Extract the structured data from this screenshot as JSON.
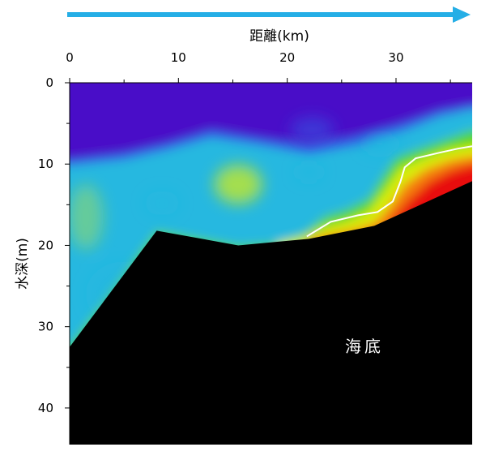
{
  "chart_data": {
    "type": "heatmap",
    "xlabel": "距離(km)",
    "ylabel": "水深(m)",
    "xlim": [
      0,
      37
    ],
    "ylim": [
      0,
      44.5
    ],
    "x_ticks": [
      "0",
      "10",
      "20",
      "30"
    ],
    "x_tick_values": [
      0,
      10,
      20,
      30
    ],
    "y_ticks": [
      "0",
      "10",
      "20",
      "30",
      "40"
    ],
    "y_tick_values": [
      0,
      10,
      20,
      30,
      40
    ],
    "x_minor_step": 5,
    "y_minor_step": 5,
    "x_axis_position": "top",
    "direction_arrow": "left-to-right",
    "seabed_label": "海底",
    "colors": {
      "deep_water": "#4a10c8",
      "blue": "#2f5fe6",
      "cyan": "#25b8e0",
      "green": "#4fd623",
      "yellow": "#d9ee10",
      "orange": "#f57d0f",
      "red": "#e80e08",
      "seabed": "#000000",
      "arrow": "#25aee6",
      "contour": "#ffffff"
    },
    "bottom_profile": [
      {
        "x": 0,
        "depth": 32.5
      },
      {
        "x": 8,
        "depth": 18.2
      },
      {
        "x": 15.5,
        "depth": 20.0
      },
      {
        "x": 22,
        "depth": 19.2
      },
      {
        "x": 28,
        "depth": 17.6
      },
      {
        "x": 37,
        "depth": 12.1
      }
    ],
    "layers": [
      {
        "name": "purple",
        "color": "#4a10c8",
        "boundary": [
          [
            0,
            8.6
          ],
          [
            5,
            7.5
          ],
          [
            9,
            6.5
          ],
          [
            13,
            4.8
          ],
          [
            17,
            5.6
          ],
          [
            22,
            6.2
          ],
          [
            27,
            5.0
          ],
          [
            31,
            3.8
          ],
          [
            34,
            2.6
          ],
          [
            37,
            2.1
          ]
        ]
      },
      {
        "name": "blue",
        "color": "#2f5fe6",
        "boundary": [
          [
            0,
            9.4
          ],
          [
            5,
            8.6
          ],
          [
            9,
            7.4
          ],
          [
            13,
            5.8
          ],
          [
            17,
            6.7
          ],
          [
            22,
            7.7
          ],
          [
            27,
            6.4
          ],
          [
            31,
            4.8
          ],
          [
            34,
            3.4
          ],
          [
            37,
            2.7
          ]
        ]
      },
      {
        "name": "cyan",
        "color": "#25b8e0",
        "boundary": [
          [
            0,
            10.2
          ],
          [
            5,
            9.5
          ],
          [
            9,
            8.3
          ],
          [
            13,
            6.8
          ],
          [
            17,
            7.6
          ],
          [
            22,
            8.8
          ],
          [
            27,
            7.6
          ],
          [
            31,
            5.8
          ],
          [
            34,
            4.2
          ],
          [
            37,
            3.3
          ]
        ]
      },
      {
        "name": "green",
        "color": "#4fd623",
        "boundary": [
          [
            0,
            32.5
          ],
          [
            8,
            18.2
          ],
          [
            15.5,
            20.0
          ],
          [
            19,
            19.7
          ],
          [
            21.5,
            18.6
          ],
          [
            23.5,
            16.4
          ],
          [
            25.5,
            15.6
          ],
          [
            27.5,
            14.2
          ],
          [
            28.8,
            11.5
          ],
          [
            30,
            9.2
          ],
          [
            32,
            8.2
          ],
          [
            34.5,
            7.0
          ],
          [
            37,
            5.8
          ]
        ]
      },
      {
        "name": "yellow",
        "color": "#d9ee10",
        "boundary": [
          [
            19,
            19.7
          ],
          [
            21.5,
            19.0
          ],
          [
            23.5,
            17.7
          ],
          [
            25.5,
            17.0
          ],
          [
            27.5,
            15.8
          ],
          [
            29,
            13.2
          ],
          [
            30.4,
            10.5
          ],
          [
            32.5,
            9.3
          ],
          [
            34.8,
            8.2
          ],
          [
            37,
            7.6
          ]
        ]
      },
      {
        "name": "orange",
        "color": "#f57d0f",
        "boundary": [
          [
            22,
            19.2
          ],
          [
            24,
            18.6
          ],
          [
            26,
            18.1
          ],
          [
            28,
            17.3
          ],
          [
            29.3,
            15.4
          ],
          [
            30.8,
            12.5
          ],
          [
            32.8,
            10.6
          ],
          [
            35,
            9.5
          ],
          [
            37,
            9.0
          ]
        ]
      },
      {
        "name": "red",
        "color": "#e80e08",
        "boundary": [
          [
            29.5,
            17.0
          ],
          [
            31,
            14.6
          ],
          [
            33,
            12.2
          ],
          [
            35,
            10.8
          ],
          [
            37,
            10.0
          ]
        ]
      }
    ],
    "contour": [
      [
        21.8,
        18.9
      ],
      [
        24,
        17.1
      ],
      [
        26.5,
        16.3
      ],
      [
        28.3,
        15.9
      ],
      [
        29.7,
        14.6
      ],
      [
        30.4,
        12.2
      ],
      [
        30.8,
        10.4
      ],
      [
        31.8,
        9.3
      ],
      [
        34,
        8.6
      ],
      [
        35.7,
        8.1
      ],
      [
        37,
        7.8
      ]
    ],
    "highlights": [
      {
        "x": 15.5,
        "depth": 12.5,
        "rx": 2.2,
        "ry": 2.4,
        "color": "#d9ee10",
        "opacity": 0.7
      },
      {
        "x": 1.5,
        "depth": 16.5,
        "rx": 1.6,
        "ry": 4.0,
        "color": "#d9ee10",
        "opacity": 0.35
      },
      {
        "x": 22.3,
        "depth": 5.8,
        "rx": 2.0,
        "ry": 1.6,
        "color": "#2f5fe6",
        "opacity": 0.5
      },
      {
        "x": 28.5,
        "depth": 7.5,
        "rx": 1.6,
        "ry": 1.1,
        "color": "#25b8e0",
        "opacity": 0.5
      },
      {
        "x": 22.0,
        "depth": 11.0,
        "rx": 1.2,
        "ry": 1.0,
        "color": "#25b8e0",
        "opacity": 0.5
      },
      {
        "x": 8.5,
        "depth": 14.8,
        "rx": 1.6,
        "ry": 1.5,
        "color": "#25b8e0",
        "opacity": 0.3
      },
      {
        "x": 5,
        "depth": 26,
        "rx": 3.5,
        "ry": 4.0,
        "color": "#25b8e0",
        "opacity": 0.25
      }
    ]
  }
}
